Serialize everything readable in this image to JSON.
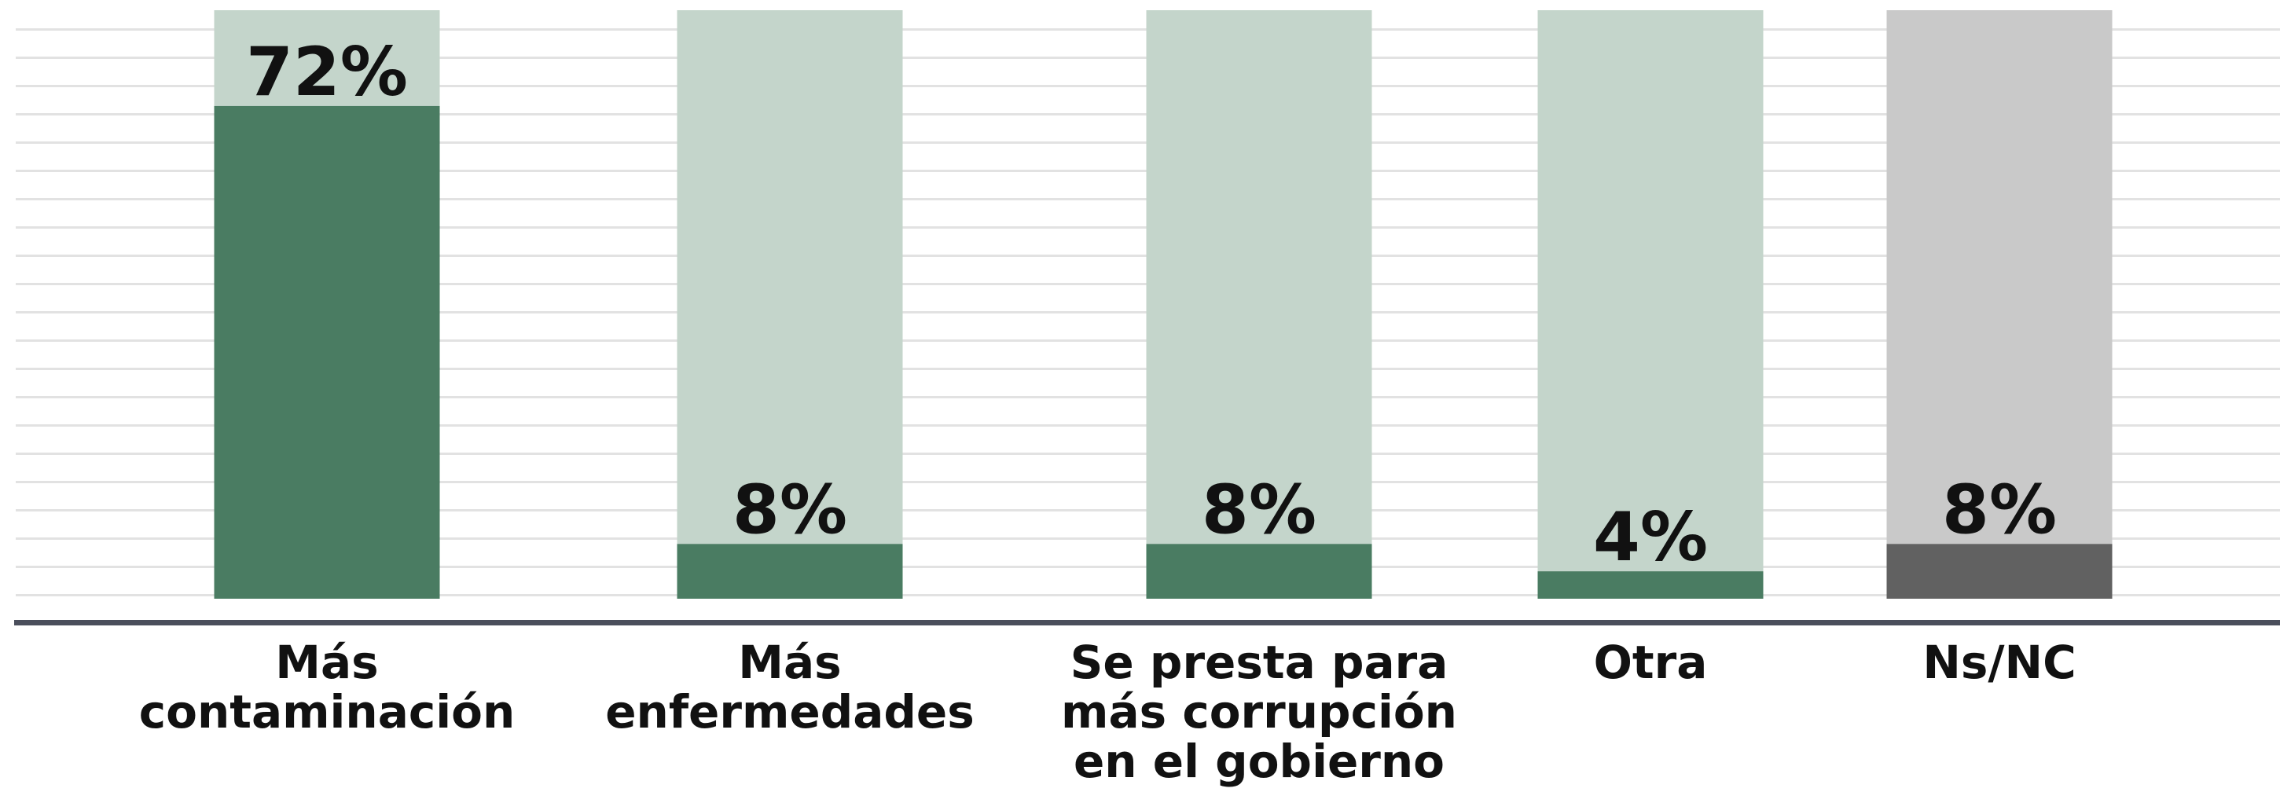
{
  "chart_data": {
    "type": "bar",
    "categories": [
      "Más\ncontaminación",
      "Más\nenfermedades",
      "Se presta para\nmás corrupción\nen el gobierno",
      "Otra",
      "Ns/NC"
    ],
    "values": [
      72,
      8,
      8,
      4,
      8
    ],
    "value_labels": [
      "72%",
      "8%",
      "8%",
      "4%",
      "8%"
    ],
    "colors": [
      "#4a7c62",
      "#4a7c62",
      "#4a7c62",
      "#4a7c62",
      "#616161"
    ],
    "track_colors": [
      "#c4d5cb",
      "#c4d5cb",
      "#c4d5cb",
      "#c4d5cb",
      "#c9c9c9"
    ],
    "ylim": [
      0,
      86
    ]
  }
}
